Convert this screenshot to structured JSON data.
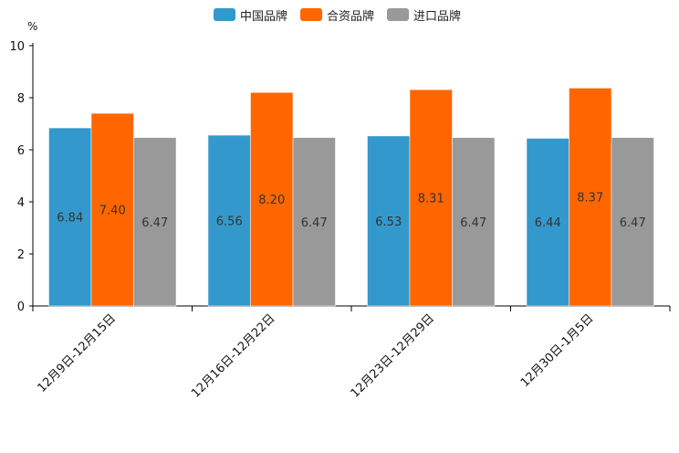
{
  "chart_data": {
    "type": "bar",
    "title": "",
    "xlabel": "",
    "ylabel": "%",
    "ylim": [
      0,
      10
    ],
    "yticks": [
      "0",
      "2",
      "4",
      "6",
      "8",
      "10"
    ],
    "categories": [
      "12月9日-12月15日",
      "12月16日-12月22日",
      "12月23日-12月29日",
      "12月30日-1月5日"
    ],
    "series": [
      {
        "name": "中国品牌",
        "color": "#3399cc",
        "values": [
          6.84,
          6.56,
          6.53,
          6.44
        ],
        "labels": [
          "6.84",
          "6.56",
          "6.53",
          "6.44"
        ]
      },
      {
        "name": "合资品牌",
        "color": "#ff6600",
        "values": [
          7.4,
          8.2,
          8.31,
          8.37
        ],
        "labels": [
          "7.40",
          "8.20",
          "8.31",
          "8.37"
        ]
      },
      {
        "name": "进口品牌",
        "color": "#999999",
        "values": [
          6.47,
          6.47,
          6.47,
          6.47
        ],
        "labels": [
          "6.47",
          "6.47",
          "6.47",
          "6.47"
        ]
      }
    ],
    "legend_position": "top-center",
    "grid": false
  }
}
